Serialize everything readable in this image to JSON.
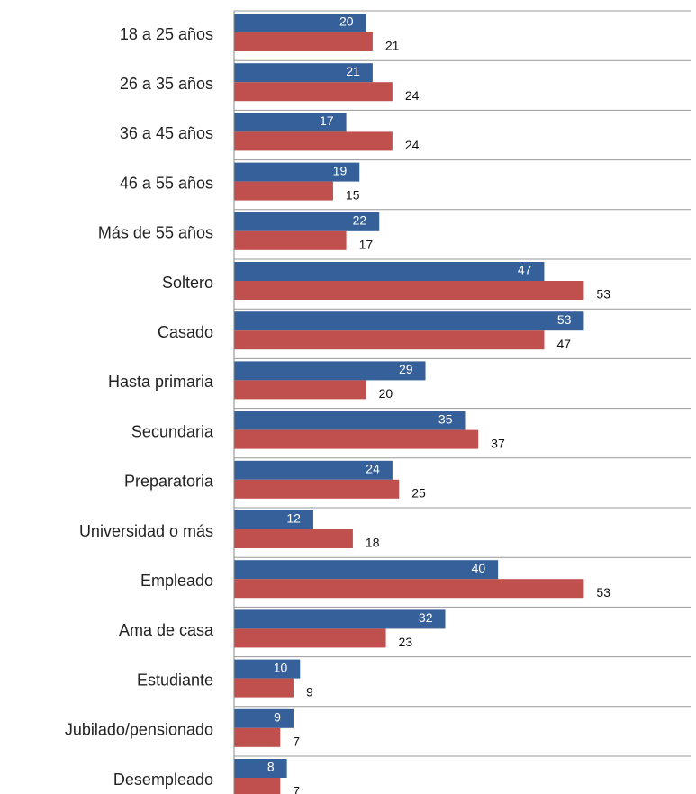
{
  "chart_data": {
    "type": "barh",
    "categories": [
      "18 a 25 años",
      "26 a 35 años",
      "36 a 45 años",
      "46 a 55 años",
      "Más de 55 años",
      "Soltero",
      "Casado",
      "Hasta primaria",
      "Secundaria",
      "Preparatoria",
      "Universidad o más",
      "Empleado",
      "Ama de casa",
      "Estudiante",
      "Jubilado/pensionado",
      "Desempleado"
    ],
    "series": [
      {
        "color": "#36609a",
        "values": [
          20,
          21,
          17,
          19,
          22,
          47,
          53,
          29,
          35,
          24,
          12,
          40,
          32,
          10,
          9,
          8
        ]
      },
      {
        "color": "#c0504d",
        "values": [
          21,
          24,
          24,
          15,
          17,
          53,
          47,
          20,
          37,
          25,
          18,
          53,
          23,
          9,
          7,
          7
        ]
      }
    ],
    "xlim": [
      0,
      70
    ]
  }
}
